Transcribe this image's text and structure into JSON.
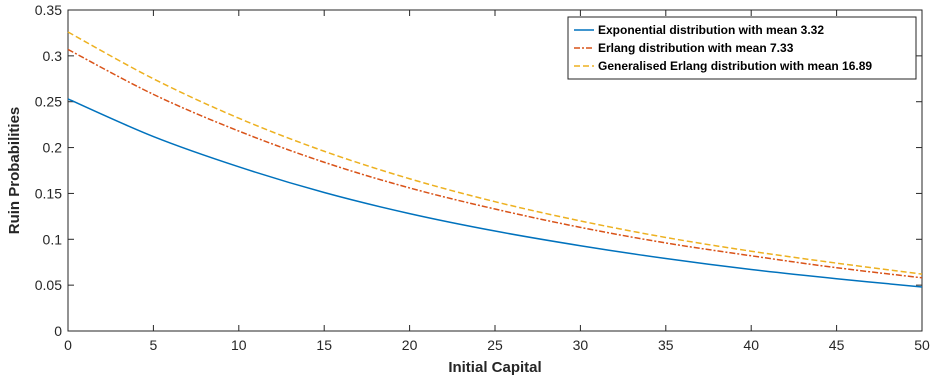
{
  "chart_data": {
    "type": "line",
    "xlabel": "Initial Capital",
    "ylabel": "Ruin Probabilities",
    "xlim": [
      0,
      50
    ],
    "ylim": [
      0,
      0.35
    ],
    "xticks": [
      0,
      5,
      10,
      15,
      20,
      25,
      30,
      35,
      40,
      45,
      50
    ],
    "yticks": [
      0,
      0.05,
      0.1,
      0.15,
      0.2,
      0.25,
      0.3,
      0.35
    ],
    "xtick_labels": [
      "0",
      "5",
      "10",
      "15",
      "20",
      "25",
      "30",
      "35",
      "40",
      "45",
      "50"
    ],
    "ytick_labels": [
      "0",
      "0.05",
      "0.1",
      "0.15",
      "0.2",
      "0.25",
      "0.3",
      "0.35"
    ],
    "grid": false,
    "legend_position": "top-right",
    "series": [
      {
        "name": "Exponential distribution with mean 3.32",
        "color": "#0072BD",
        "style": "solid",
        "x": [
          0,
          5,
          10,
          15,
          20,
          25,
          30,
          35,
          40,
          45,
          50
        ],
        "y": [
          0.253,
          0.212,
          0.179,
          0.151,
          0.128,
          0.109,
          0.093,
          0.079,
          0.067,
          0.057,
          0.048
        ]
      },
      {
        "name": "Erlang distribution with mean 7.33",
        "color": "#D95319",
        "style": "dashdot",
        "x": [
          0,
          5,
          10,
          15,
          20,
          25,
          30,
          35,
          40,
          45,
          50
        ],
        "y": [
          0.307,
          0.258,
          0.218,
          0.184,
          0.156,
          0.133,
          0.113,
          0.096,
          0.082,
          0.069,
          0.058
        ]
      },
      {
        "name": "Generalised Erlang distribution with mean 16.89",
        "color": "#EDB120",
        "style": "dashed",
        "x": [
          0,
          5,
          10,
          15,
          20,
          25,
          30,
          35,
          40,
          45,
          50
        ],
        "y": [
          0.326,
          0.275,
          0.232,
          0.196,
          0.166,
          0.141,
          0.12,
          0.102,
          0.087,
          0.074,
          0.062
        ]
      }
    ]
  }
}
